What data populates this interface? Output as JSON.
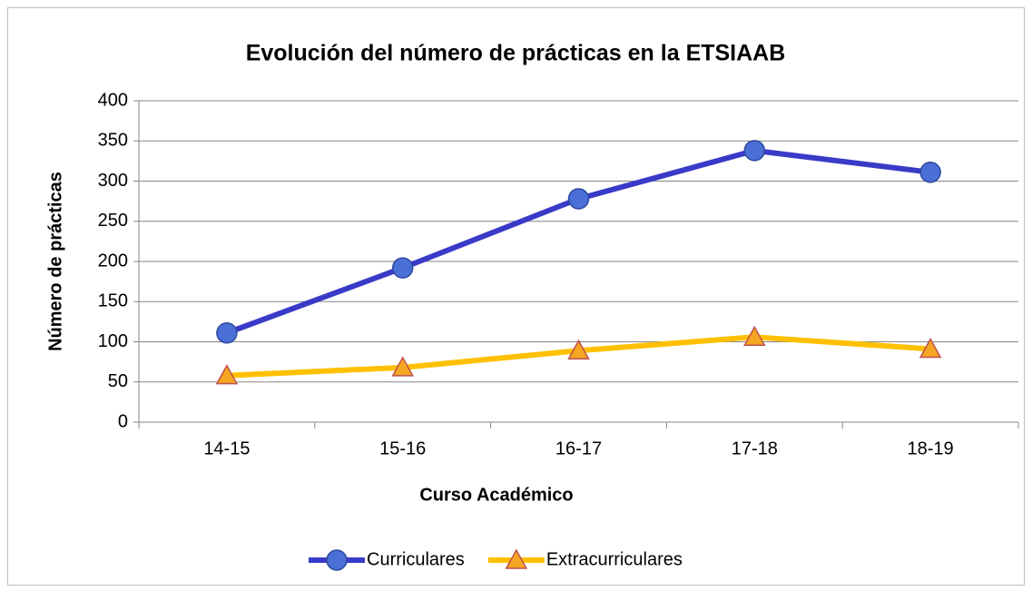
{
  "chart_data": {
    "type": "line",
    "title": "Evolución del número de prácticas en la ETSIAAB",
    "x_label": "Curso Académico",
    "y_label": "Número de prácticas",
    "categories": [
      "14-15",
      "15-16",
      "16-17",
      "17-18",
      "18-19"
    ],
    "series": [
      {
        "name": "Curriculares",
        "color": "#3a3ac8",
        "marker": "circle",
        "values": [
          111,
          192,
          278,
          338,
          311
        ]
      },
      {
        "name": "Extracurriculares",
        "color": "#ffc000",
        "marker": "triangle",
        "values": [
          58,
          68,
          89,
          106,
          91
        ]
      }
    ],
    "ylim": [
      0,
      400
    ],
    "yticks": [
      0,
      50,
      100,
      150,
      200,
      250,
      300,
      350,
      400
    ],
    "grid": true,
    "legend": "bottom"
  }
}
